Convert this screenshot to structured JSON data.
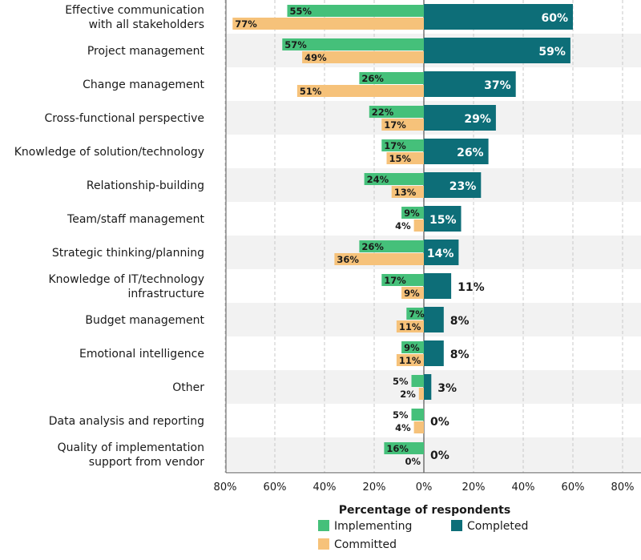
{
  "chart_data": {
    "type": "bar",
    "xlabel": "Percentage of respondents",
    "xlim": [
      -80,
      80
    ],
    "x_ticks": [
      "80%",
      "60%",
      "40%",
      "20%",
      "0%",
      "20%",
      "40%",
      "60%",
      "80%"
    ],
    "grid": "vertical dashed",
    "legend_position": "bottom",
    "categories": [
      "Effective communication\nwith all stakeholders",
      "Project management",
      "Change management",
      "Cross-functional perspective",
      "Knowledge of solution/technology",
      "Relationship-building",
      "Team/staff management",
      "Strategic thinking/planning",
      "Knowledge of IT/technology\ninfrastructure",
      "Budget management",
      "Emotional intelligence",
      "Other",
      "Data analysis and reporting",
      "Quality of implementation\nsupport from vendor"
    ],
    "series": [
      {
        "name": "Implementing",
        "color": "#45c07a",
        "side": "left",
        "values": [
          55,
          57,
          26,
          22,
          17,
          24,
          9,
          26,
          17,
          7,
          9,
          5,
          5,
          16
        ]
      },
      {
        "name": "Committed",
        "color": "#f6c27a",
        "side": "left",
        "values": [
          77,
          49,
          51,
          17,
          15,
          13,
          4,
          36,
          9,
          11,
          11,
          2,
          4,
          0
        ]
      },
      {
        "name": "Completed",
        "color": "#0d6e78",
        "side": "right",
        "values": [
          60,
          59,
          37,
          29,
          26,
          23,
          15,
          14,
          11,
          8,
          8,
          3,
          0,
          0
        ]
      }
    ],
    "legend": [
      "Implementing",
      "Completed",
      "Committed"
    ]
  }
}
